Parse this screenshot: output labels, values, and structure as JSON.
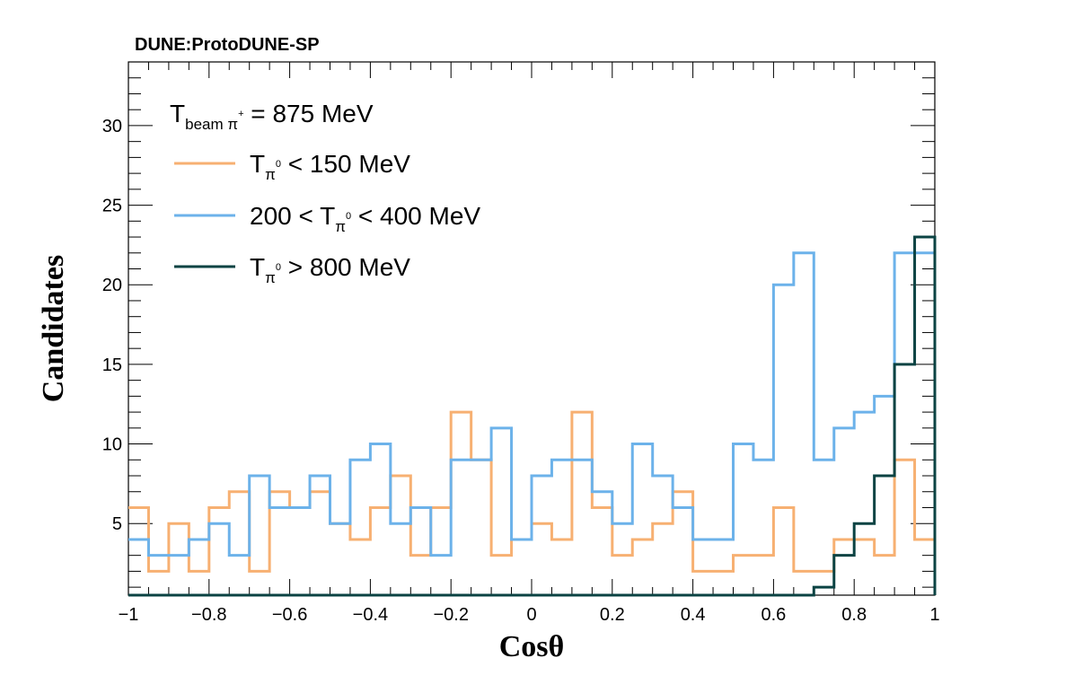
{
  "chart_data": {
    "type": "line",
    "subtype": "step-histogram",
    "banner": "DUNE:ProtoDUNE-SP",
    "xlabel": "Cosθ",
    "ylabel": "Candidates",
    "xlim": [
      -1,
      1
    ],
    "ylim": [
      0.5,
      34
    ],
    "x_ticks": [
      -1,
      -0.8,
      -0.6,
      -0.4,
      -0.2,
      0,
      0.2,
      0.4,
      0.6,
      0.8,
      1
    ],
    "x_tick_labels": [
      "−1",
      "−0.8",
      "−0.6",
      "−0.4",
      "−0.2",
      "0",
      "0.2",
      "0.4",
      "0.6",
      "0.8",
      "1"
    ],
    "y_ticks": [
      5,
      10,
      15,
      20,
      25,
      30
    ],
    "y_tick_labels": [
      "5",
      "10",
      "15",
      "20",
      "25",
      "30"
    ],
    "grid": false,
    "legend_position": "top-left",
    "legend": {
      "header": {
        "main": "T",
        "sub": "beam π",
        "sup": "+",
        "tail": " = 875 MeV"
      },
      "entries": [
        {
          "pre": "",
          "main": "T",
          "sub": "π",
          "sup": "0",
          "tail": " < 150 MeV"
        },
        {
          "pre": "200 < ",
          "main": "T",
          "sub": "π",
          "sup": "0",
          "tail": " < 400 MeV"
        },
        {
          "pre": "",
          "main": "T",
          "sub": "π",
          "sup": "0",
          "tail": " > 800 MeV"
        }
      ]
    },
    "bin_edges": [
      -1,
      -0.95,
      -0.9,
      -0.85,
      -0.8,
      -0.75,
      -0.7,
      -0.65,
      -0.6,
      -0.55,
      -0.5,
      -0.45,
      -0.4,
      -0.35,
      -0.3,
      -0.25,
      -0.2,
      -0.15,
      -0.1,
      -0.05,
      0,
      0.05,
      0.1,
      0.15,
      0.2,
      0.25,
      0.3,
      0.35,
      0.4,
      0.45,
      0.5,
      0.55,
      0.6,
      0.65,
      0.7,
      0.75,
      0.8,
      0.85,
      0.9,
      0.95,
      1
    ],
    "series": [
      {
        "color": "#f7b072",
        "values": [
          6,
          2,
          5,
          2,
          6,
          7,
          2,
          7,
          6,
          7,
          5,
          4,
          6,
          8,
          3,
          6,
          12,
          9,
          3,
          4,
          5,
          4,
          12,
          6,
          3,
          4,
          5,
          7,
          2,
          2,
          3,
          3,
          6,
          2,
          2,
          4,
          4,
          3,
          9,
          4
        ]
      },
      {
        "color": "#6cb2ea",
        "values": [
          4,
          3,
          3,
          4,
          5,
          3,
          8,
          6,
          6,
          8,
          5,
          9,
          10,
          5,
          6,
          3,
          9,
          9,
          11,
          4,
          8,
          9,
          9,
          7,
          5,
          10,
          8,
          6,
          4,
          4,
          10,
          9,
          20,
          22,
          9,
          11,
          12,
          13,
          22,
          22
        ]
      },
      {
        "color": "#0b4343",
        "values": [
          0,
          0,
          0,
          0,
          0,
          0,
          0,
          0,
          0,
          0,
          0,
          0,
          0,
          0,
          0,
          0,
          0,
          0,
          0,
          0,
          0,
          0,
          0,
          0,
          0,
          0,
          0,
          0,
          0,
          0,
          0,
          0,
          0,
          0,
          1,
          3,
          5,
          8,
          15,
          23
        ]
      }
    ]
  }
}
